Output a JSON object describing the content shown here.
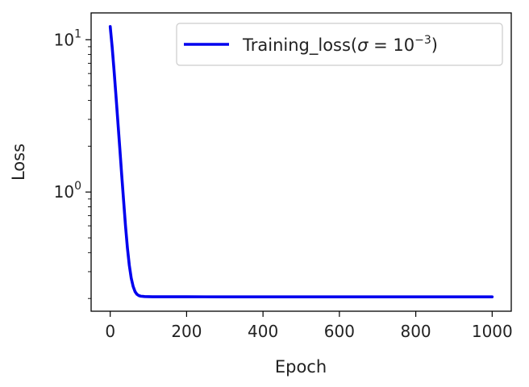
{
  "chart_data": {
    "type": "line",
    "title": "",
    "xlabel": "Epoch",
    "ylabel": "Loss",
    "xscale": "linear",
    "yscale": "log",
    "xlim": [
      -50,
      1050
    ],
    "ylim": [
      0.165,
      15
    ],
    "grid": false,
    "legend_position": "top-right",
    "x_ticks": [
      {
        "value": 0,
        "label": "0"
      },
      {
        "value": 200,
        "label": "200"
      },
      {
        "value": 400,
        "label": "400"
      },
      {
        "value": 600,
        "label": "600"
      },
      {
        "value": 800,
        "label": "800"
      },
      {
        "value": 1000,
        "label": "1000"
      }
    ],
    "y_ticks": [
      {
        "value": 1,
        "base": "10",
        "exponent": "0"
      },
      {
        "value": 10,
        "base": "10",
        "exponent": "1"
      }
    ],
    "series": [
      {
        "legend_parts": {
          "prefix": "Training_loss(",
          "sigma": "σ",
          "equals": " = 10",
          "exponent": "−3",
          "suffix": ")"
        },
        "color": "#0000ee",
        "x": [
          0,
          5,
          10,
          15,
          20,
          25,
          30,
          35,
          40,
          45,
          50,
          55,
          60,
          65,
          70,
          75,
          80,
          85,
          90,
          100,
          110,
          120,
          150,
          200,
          300,
          400,
          500,
          600,
          700,
          800,
          900,
          1000
        ],
        "y": [
          12.2,
          9.0,
          6.3,
          4.3,
          2.9,
          1.95,
          1.3,
          0.88,
          0.6,
          0.43,
          0.33,
          0.272,
          0.24,
          0.222,
          0.213,
          0.209,
          0.207,
          0.2065,
          0.206,
          0.2056,
          0.2054,
          0.2053,
          0.2052,
          0.2052,
          0.2051,
          0.2051,
          0.2051,
          0.2051,
          0.2051,
          0.2051,
          0.2051,
          0.2051
        ]
      }
    ]
  }
}
